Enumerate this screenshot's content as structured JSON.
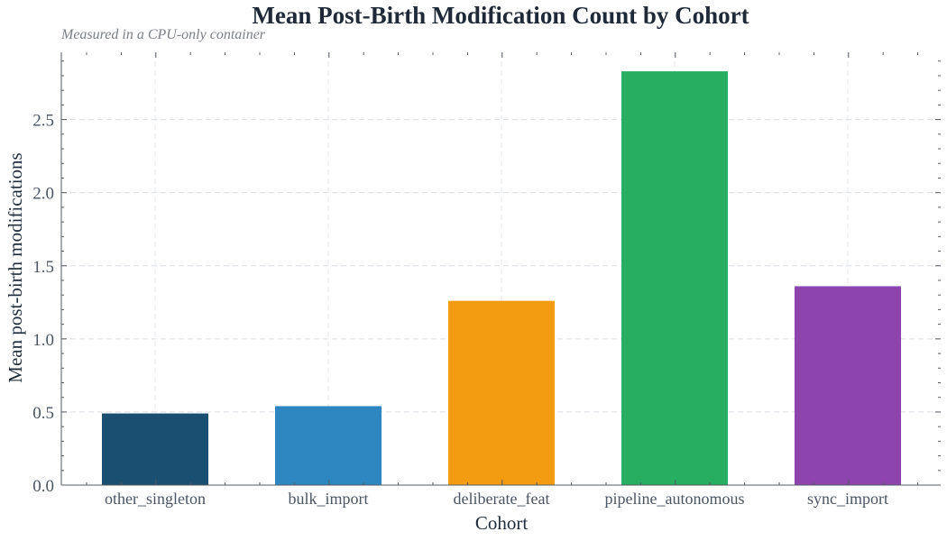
{
  "chart_data": {
    "type": "bar",
    "title": "Mean Post-Birth Modification Count by Cohort",
    "subtitle": "Measured in a CPU-only container",
    "xlabel": "Cohort",
    "ylabel": "Mean post-birth modifications",
    "categories": [
      "other_singleton",
      "bulk_import",
      "deliberate_feat",
      "pipeline_autonomous",
      "sync_import"
    ],
    "values": [
      0.49,
      0.54,
      1.26,
      2.83,
      1.36
    ],
    "colors": [
      "#1a4f72",
      "#2e86c1",
      "#f39c12",
      "#27ae60",
      "#8e44ad"
    ],
    "ylim": [
      0,
      2.96
    ],
    "yticks": [
      0.0,
      0.5,
      1.0,
      1.5,
      2.0,
      2.5
    ],
    "ytick_labels": [
      "0.0",
      "0.5",
      "1.0",
      "1.5",
      "2.0",
      "2.5"
    ],
    "grid": true,
    "legend": "none"
  }
}
